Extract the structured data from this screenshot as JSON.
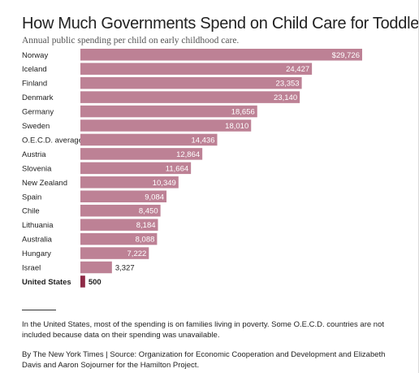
{
  "title": "How Much Governments Spend on Child Care for Toddlers",
  "subtitle": "Annual public spending per child on early childhood care.",
  "note": "In the United States, most of the spending is on families living in poverty. Some O.E.C.D. countries are not included because data on their spending was unavailable.",
  "credit": "By The New York Times | Source: Organization for Economic Cooperation and Development and Elizabeth Davis and Aaron Sojourner for the Hamilton Project.",
  "colors": {
    "bar": "#bd8195",
    "highlight": "#8e2a47",
    "label_inside": "#ffffff",
    "label_outside": "#222222"
  },
  "chart_data": {
    "type": "bar",
    "orientation": "horizontal",
    "categories": [
      "Norway",
      "Iceland",
      "Finland",
      "Denmark",
      "Germany",
      "Sweden",
      "O.E.C.D. average",
      "Austria",
      "Slovenia",
      "New Zealand",
      "Spain",
      "Chile",
      "Lithuania",
      "Australia",
      "Hungary",
      "Israel",
      "United States"
    ],
    "values": [
      29726,
      24427,
      23353,
      23140,
      18656,
      18010,
      14436,
      12864,
      11664,
      10349,
      9084,
      8450,
      8184,
      8088,
      7222,
      3327,
      500
    ],
    "value_labels": [
      "$29,726",
      "24,427",
      "23,353",
      "23,140",
      "18,656",
      "18,010",
      "14,436",
      "12,864",
      "11,664",
      "10,349",
      "9,084",
      "8,450",
      "8,184",
      "8,088",
      "7,222",
      "3,327",
      "500"
    ],
    "highlight": "United States",
    "xlim": [
      0,
      29726
    ],
    "grid": false,
    "legend": "none"
  }
}
